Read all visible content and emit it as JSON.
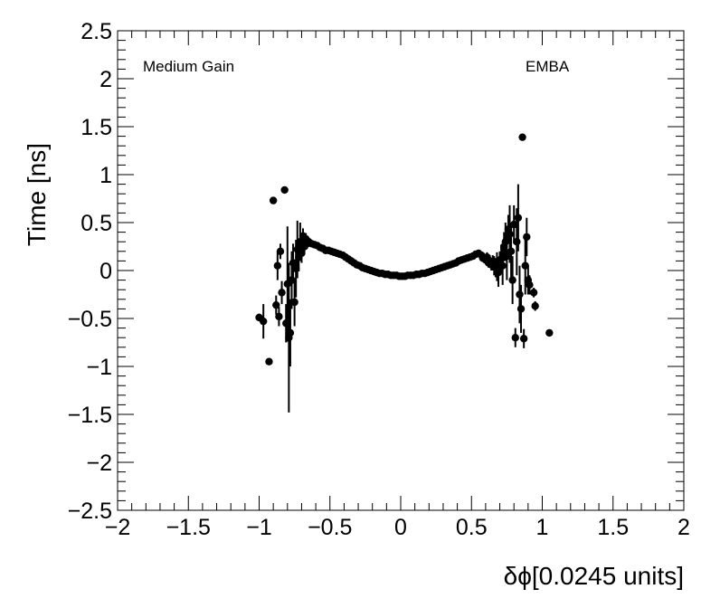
{
  "chart_data": {
    "type": "scatter",
    "xlabel": "δϕ[0.0245 units]",
    "ylabel": "Time [ns]",
    "xlim": [
      -2,
      2
    ],
    "ylim": [
      -2.5,
      2.5
    ],
    "xticks": [
      "−2",
      "−1.5",
      "−1",
      "−0.5",
      "0",
      "0.5",
      "1",
      "1.5",
      "2"
    ],
    "yticks": [
      "2.5",
      "2",
      "1.5",
      "1",
      "0.5",
      "0",
      "−0.5",
      "−1",
      "−1.5",
      "−2",
      "−2.5"
    ],
    "grid": false,
    "annotations": {
      "left": "Medium Gain",
      "right": "EMBA"
    },
    "series": [
      {
        "points": [
          {
            "x": -1.0,
            "y": -0.49,
            "err": 0.04
          },
          {
            "x": -0.97,
            "y": -0.53,
            "err": 0.18
          },
          {
            "x": -0.93,
            "y": -0.95,
            "err": 0.03
          },
          {
            "x": -0.9,
            "y": 0.73,
            "err": 0.03
          },
          {
            "x": -0.88,
            "y": -0.36,
            "err": 0.1
          },
          {
            "x": -0.87,
            "y": 0.05,
            "err": 0.15
          },
          {
            "x": -0.86,
            "y": -0.48,
            "err": 0.1
          },
          {
            "x": -0.85,
            "y": 0.2,
            "err": 0.08
          },
          {
            "x": -0.84,
            "y": -0.23,
            "err": 0.12
          },
          {
            "x": -0.82,
            "y": 0.84,
            "err": 0.03
          },
          {
            "x": -0.81,
            "y": -0.55,
            "err": 0.2
          },
          {
            "x": -0.8,
            "y": -0.14,
            "err": 0.6
          },
          {
            "x": -0.79,
            "y": -0.7,
            "err": 0.78
          },
          {
            "x": -0.78,
            "y": -0.65,
            "err": 0.35
          },
          {
            "x": -0.77,
            "y": -0.1,
            "err": 0.3
          },
          {
            "x": -0.76,
            "y": 0.08,
            "err": 0.2
          },
          {
            "x": -0.75,
            "y": -0.33,
            "err": 0.25
          },
          {
            "x": -0.74,
            "y": 0.02,
            "err": 0.3
          },
          {
            "x": -0.73,
            "y": 0.22,
            "err": 0.3
          },
          {
            "x": -0.72,
            "y": 0.14,
            "err": 0.15
          },
          {
            "x": -0.71,
            "y": 0.3,
            "err": 0.2
          },
          {
            "x": -0.7,
            "y": 0.18,
            "err": 0.1
          },
          {
            "x": -0.69,
            "y": 0.36,
            "err": 0.08
          },
          {
            "x": -0.68,
            "y": 0.25,
            "err": 0.06
          },
          {
            "x": -0.67,
            "y": 0.33,
            "err": 0.06
          },
          {
            "x": -0.66,
            "y": 0.28,
            "err": 0.05
          },
          {
            "x": -0.65,
            "y": 0.3,
            "err": 0.04
          },
          {
            "x": -0.63,
            "y": 0.28,
            "err": 0.03
          },
          {
            "x": -0.61,
            "y": 0.27,
            "err": 0.03
          },
          {
            "x": -0.59,
            "y": 0.26,
            "err": 0.02
          },
          {
            "x": -0.57,
            "y": 0.24,
            "err": 0.02
          },
          {
            "x": -0.55,
            "y": 0.23,
            "err": 0.02
          },
          {
            "x": -0.53,
            "y": 0.21,
            "err": 0.02
          },
          {
            "x": -0.51,
            "y": 0.21,
            "err": 0.02
          },
          {
            "x": -0.49,
            "y": 0.2,
            "err": 0.02
          },
          {
            "x": -0.47,
            "y": 0.19,
            "err": 0.02
          },
          {
            "x": -0.45,
            "y": 0.18,
            "err": 0.02
          },
          {
            "x": -0.43,
            "y": 0.17,
            "err": 0.02
          },
          {
            "x": -0.41,
            "y": 0.16,
            "err": 0.02
          },
          {
            "x": -0.39,
            "y": 0.14,
            "err": 0.02
          },
          {
            "x": -0.37,
            "y": 0.12,
            "err": 0.02
          },
          {
            "x": -0.35,
            "y": 0.1,
            "err": 0.02
          },
          {
            "x": -0.33,
            "y": 0.08,
            "err": 0.02
          },
          {
            "x": -0.31,
            "y": 0.06,
            "err": 0.02
          },
          {
            "x": -0.29,
            "y": 0.05,
            "err": 0.02
          },
          {
            "x": -0.27,
            "y": 0.03,
            "err": 0.02
          },
          {
            "x": -0.25,
            "y": 0.02,
            "err": 0.02
          },
          {
            "x": -0.23,
            "y": 0.01,
            "err": 0.02
          },
          {
            "x": -0.21,
            "y": 0.0,
            "err": 0.02
          },
          {
            "x": -0.19,
            "y": -0.01,
            "err": 0.02
          },
          {
            "x": -0.17,
            "y": -0.02,
            "err": 0.02
          },
          {
            "x": -0.15,
            "y": -0.03,
            "err": 0.02
          },
          {
            "x": -0.13,
            "y": -0.03,
            "err": 0.02
          },
          {
            "x": -0.11,
            "y": -0.04,
            "err": 0.02
          },
          {
            "x": -0.09,
            "y": -0.04,
            "err": 0.02
          },
          {
            "x": -0.07,
            "y": -0.05,
            "err": 0.02
          },
          {
            "x": -0.05,
            "y": -0.05,
            "err": 0.02
          },
          {
            "x": -0.03,
            "y": -0.05,
            "err": 0.02
          },
          {
            "x": -0.01,
            "y": -0.06,
            "err": 0.02
          },
          {
            "x": 0.01,
            "y": -0.06,
            "err": 0.02
          },
          {
            "x": 0.03,
            "y": -0.06,
            "err": 0.02
          },
          {
            "x": 0.05,
            "y": -0.05,
            "err": 0.02
          },
          {
            "x": 0.07,
            "y": -0.05,
            "err": 0.02
          },
          {
            "x": 0.09,
            "y": -0.05,
            "err": 0.02
          },
          {
            "x": 0.11,
            "y": -0.04,
            "err": 0.02
          },
          {
            "x": 0.13,
            "y": -0.04,
            "err": 0.02
          },
          {
            "x": 0.15,
            "y": -0.03,
            "err": 0.02
          },
          {
            "x": 0.17,
            "y": -0.03,
            "err": 0.02
          },
          {
            "x": 0.19,
            "y": -0.02,
            "err": 0.02
          },
          {
            "x": 0.21,
            "y": -0.01,
            "err": 0.02
          },
          {
            "x": 0.23,
            "y": 0.0,
            "err": 0.02
          },
          {
            "x": 0.25,
            "y": 0.01,
            "err": 0.02
          },
          {
            "x": 0.27,
            "y": 0.02,
            "err": 0.02
          },
          {
            "x": 0.29,
            "y": 0.03,
            "err": 0.02
          },
          {
            "x": 0.31,
            "y": 0.04,
            "err": 0.02
          },
          {
            "x": 0.33,
            "y": 0.05,
            "err": 0.02
          },
          {
            "x": 0.35,
            "y": 0.06,
            "err": 0.02
          },
          {
            "x": 0.37,
            "y": 0.07,
            "err": 0.02
          },
          {
            "x": 0.39,
            "y": 0.08,
            "err": 0.02
          },
          {
            "x": 0.41,
            "y": 0.1,
            "err": 0.02
          },
          {
            "x": 0.43,
            "y": 0.11,
            "err": 0.02
          },
          {
            "x": 0.45,
            "y": 0.12,
            "err": 0.02
          },
          {
            "x": 0.47,
            "y": 0.13,
            "err": 0.02
          },
          {
            "x": 0.49,
            "y": 0.14,
            "err": 0.02
          },
          {
            "x": 0.51,
            "y": 0.15,
            "err": 0.03
          },
          {
            "x": 0.53,
            "y": 0.17,
            "err": 0.03
          },
          {
            "x": 0.55,
            "y": 0.18,
            "err": 0.03
          },
          {
            "x": 0.57,
            "y": 0.16,
            "err": 0.03
          },
          {
            "x": 0.58,
            "y": 0.13,
            "err": 0.04
          },
          {
            "x": 0.6,
            "y": 0.11,
            "err": 0.04
          },
          {
            "x": 0.61,
            "y": 0.14,
            "err": 0.05
          },
          {
            "x": 0.62,
            "y": 0.08,
            "err": 0.05
          },
          {
            "x": 0.63,
            "y": 0.1,
            "err": 0.06
          },
          {
            "x": 0.64,
            "y": 0.06,
            "err": 0.06
          },
          {
            "x": 0.65,
            "y": 0.08,
            "err": 0.08
          },
          {
            "x": 0.66,
            "y": 0.05,
            "err": 0.1
          },
          {
            "x": 0.67,
            "y": 0.03,
            "err": 0.1
          },
          {
            "x": 0.68,
            "y": 0.04,
            "err": 0.15
          },
          {
            "x": 0.69,
            "y": -0.02,
            "err": 0.15
          },
          {
            "x": 0.7,
            "y": 0.08,
            "err": 0.12
          },
          {
            "x": 0.71,
            "y": 0.12,
            "err": 0.15
          },
          {
            "x": 0.72,
            "y": 0.05,
            "err": 0.2
          },
          {
            "x": 0.73,
            "y": 0.25,
            "err": 0.15
          },
          {
            "x": 0.74,
            "y": 0.3,
            "err": 0.2
          },
          {
            "x": 0.75,
            "y": 0.15,
            "err": 0.25
          },
          {
            "x": 0.76,
            "y": 0.43,
            "err": 0.15
          },
          {
            "x": 0.77,
            "y": 0.38,
            "err": 0.3
          },
          {
            "x": 0.78,
            "y": 0.2,
            "err": 0.3
          },
          {
            "x": 0.79,
            "y": -0.1,
            "err": 0.25
          },
          {
            "x": 0.8,
            "y": 0.48,
            "err": 0.2
          },
          {
            "x": 0.81,
            "y": -0.7,
            "err": 0.1
          },
          {
            "x": 0.82,
            "y": 0.3,
            "err": 0.35
          },
          {
            "x": 0.83,
            "y": 0.55,
            "err": 0.35
          },
          {
            "x": 0.84,
            "y": -0.25,
            "err": 0.3
          },
          {
            "x": 0.85,
            "y": -0.4,
            "err": 0.25
          },
          {
            "x": 0.86,
            "y": 1.39,
            "err": 0.03
          },
          {
            "x": 0.87,
            "y": -0.71,
            "err": 0.1
          },
          {
            "x": 0.88,
            "y": 0.05,
            "err": 0.3
          },
          {
            "x": 0.89,
            "y": 0.35,
            "err": 0.2
          },
          {
            "x": 0.9,
            "y": -0.1,
            "err": 0.15
          },
          {
            "x": 0.91,
            "y": -0.15,
            "err": 0.1
          },
          {
            "x": 0.94,
            "y": -0.23,
            "err": 0.05
          },
          {
            "x": 0.95,
            "y": -0.37,
            "err": 0.05
          },
          {
            "x": 1.05,
            "y": -0.65,
            "err": 0.03
          }
        ]
      }
    ]
  }
}
